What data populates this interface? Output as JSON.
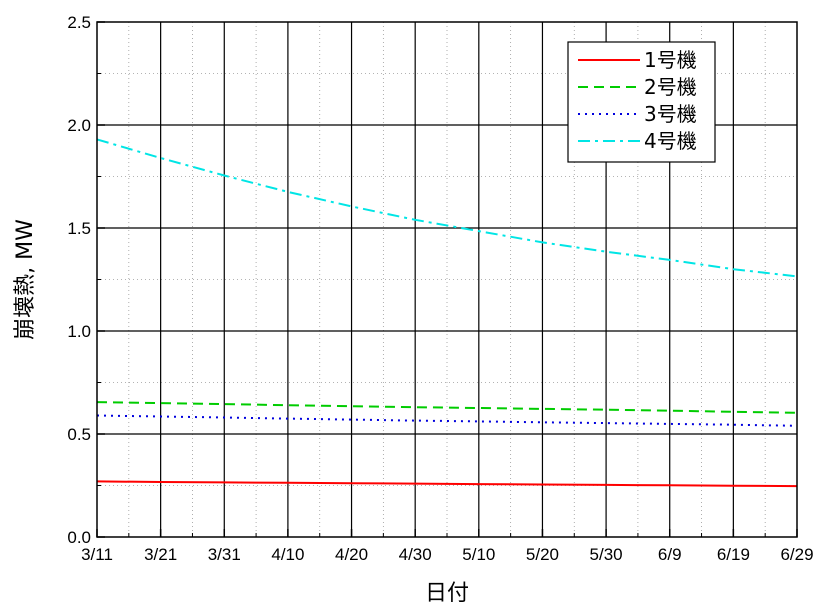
{
  "chart_data": {
    "type": "line",
    "xlabel": "日付",
    "ylabel": "崩壊熱, MW",
    "x_tick_labels": [
      "3/11",
      "3/21",
      "3/31",
      "4/10",
      "4/20",
      "4/30",
      "5/10",
      "5/20",
      "5/30",
      "6/9",
      "6/19",
      "6/29"
    ],
    "y_ticks": [
      0.0,
      0.5,
      1.0,
      1.5,
      2.0,
      2.5
    ],
    "y_tick_labels": [
      "0.0",
      "0.5",
      "1.0",
      "1.5",
      "2.0",
      "2.5"
    ],
    "ylim": [
      0,
      2.5
    ],
    "xlim": [
      "3/11",
      "6/29"
    ],
    "grid": true,
    "legend_position": "top-right",
    "series": [
      {
        "name": "1号機",
        "color": "#ff0000",
        "dash": "solid",
        "x": [
          "3/11",
          "3/21",
          "3/31",
          "4/10",
          "4/20",
          "4/30",
          "5/10",
          "5/20",
          "5/30",
          "6/9",
          "6/19",
          "6/29"
        ],
        "values": [
          0.27,
          0.267,
          0.265,
          0.263,
          0.261,
          0.259,
          0.257,
          0.255,
          0.253,
          0.251,
          0.249,
          0.247
        ]
      },
      {
        "name": "2号機",
        "color": "#00cc00",
        "dash": "dashed",
        "x": [
          "3/11",
          "3/21",
          "3/31",
          "4/10",
          "4/20",
          "4/30",
          "5/10",
          "5/20",
          "5/30",
          "6/9",
          "6/19",
          "6/29"
        ],
        "values": [
          0.655,
          0.65,
          0.645,
          0.64,
          0.635,
          0.63,
          0.626,
          0.622,
          0.618,
          0.613,
          0.608,
          0.603
        ]
      },
      {
        "name": "3号機",
        "color": "#0000dd",
        "dash": "dotted",
        "x": [
          "3/11",
          "3/21",
          "3/31",
          "4/10",
          "4/20",
          "4/30",
          "5/10",
          "5/20",
          "5/30",
          "6/9",
          "6/19",
          "6/29"
        ],
        "values": [
          0.59,
          0.585,
          0.58,
          0.575,
          0.57,
          0.565,
          0.561,
          0.557,
          0.553,
          0.549,
          0.545,
          0.54
        ]
      },
      {
        "name": "4号機",
        "color": "#00e5e5",
        "dash": "dash-dot",
        "x": [
          "3/11",
          "3/21",
          "3/31",
          "4/10",
          "4/20",
          "4/30",
          "5/10",
          "5/20",
          "5/30",
          "6/9",
          "6/19",
          "6/29"
        ],
        "values": [
          1.93,
          1.84,
          1.755,
          1.675,
          1.605,
          1.54,
          1.485,
          1.43,
          1.385,
          1.345,
          1.3,
          1.265
        ]
      }
    ]
  }
}
